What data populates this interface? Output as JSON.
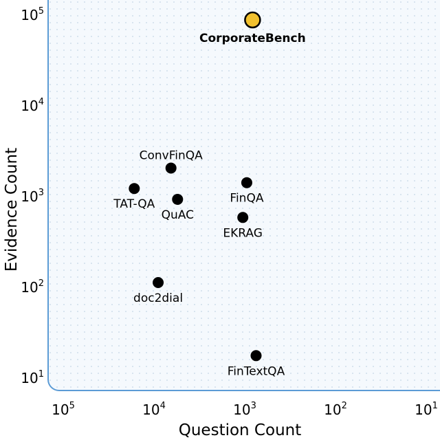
{
  "chart_data": {
    "type": "scatter",
    "xlabel": "Question Count",
    "ylabel": "Evidence Count",
    "xscale": "log",
    "yscale": "log",
    "xaxis_reversed": true,
    "xlim": [
      100000,
      10
    ],
    "ylim": [
      7,
      130000
    ],
    "x_ticks": [
      {
        "value": 100000,
        "base": "10",
        "exp": "5"
      },
      {
        "value": 10000,
        "base": "10",
        "exp": "4"
      },
      {
        "value": 1000,
        "base": "10",
        "exp": "3"
      },
      {
        "value": 100,
        "base": "10",
        "exp": "2"
      },
      {
        "value": 10,
        "base": "10",
        "exp": "1"
      }
    ],
    "y_ticks": [
      {
        "value": 100000,
        "base": "10",
        "exp": "5"
      },
      {
        "value": 10000,
        "base": "10",
        "exp": "4"
      },
      {
        "value": 1000,
        "base": "10",
        "exp": "3"
      },
      {
        "value": 100,
        "base": "10",
        "exp": "2"
      },
      {
        "value": 10,
        "base": "10",
        "exp": "1"
      }
    ],
    "grid": "dotted",
    "points": [
      {
        "label": "CorporateBench",
        "x": 820,
        "y": 90000,
        "color": "#F2C12E",
        "highlight": true,
        "label_pos": "below"
      },
      {
        "label": "ConvFinQA",
        "x": 6500,
        "y": 2100,
        "color": "#000000",
        "label_pos": "above"
      },
      {
        "label": "TAT-QA",
        "x": 16500,
        "y": 1250,
        "color": "#000000",
        "label_pos": "below"
      },
      {
        "label": "QuAC",
        "x": 5500,
        "y": 950,
        "color": "#000000",
        "label_pos": "below"
      },
      {
        "label": "FinQA",
        "x": 950,
        "y": 1450,
        "color": "#000000",
        "label_pos": "below"
      },
      {
        "label": "EKRAG",
        "x": 1050,
        "y": 600,
        "color": "#000000",
        "label_pos": "below"
      },
      {
        "label": "doc2dial",
        "x": 9000,
        "y": 115,
        "color": "#000000",
        "label_pos": "below"
      },
      {
        "label": "FinTextQA",
        "x": 750,
        "y": 18,
        "color": "#000000",
        "label_pos": "below"
      }
    ],
    "colors": {
      "plot_background": "#F5F9FD",
      "axis_frame": "#5B9BD5",
      "grid_dots": "#C3D4E6"
    }
  }
}
